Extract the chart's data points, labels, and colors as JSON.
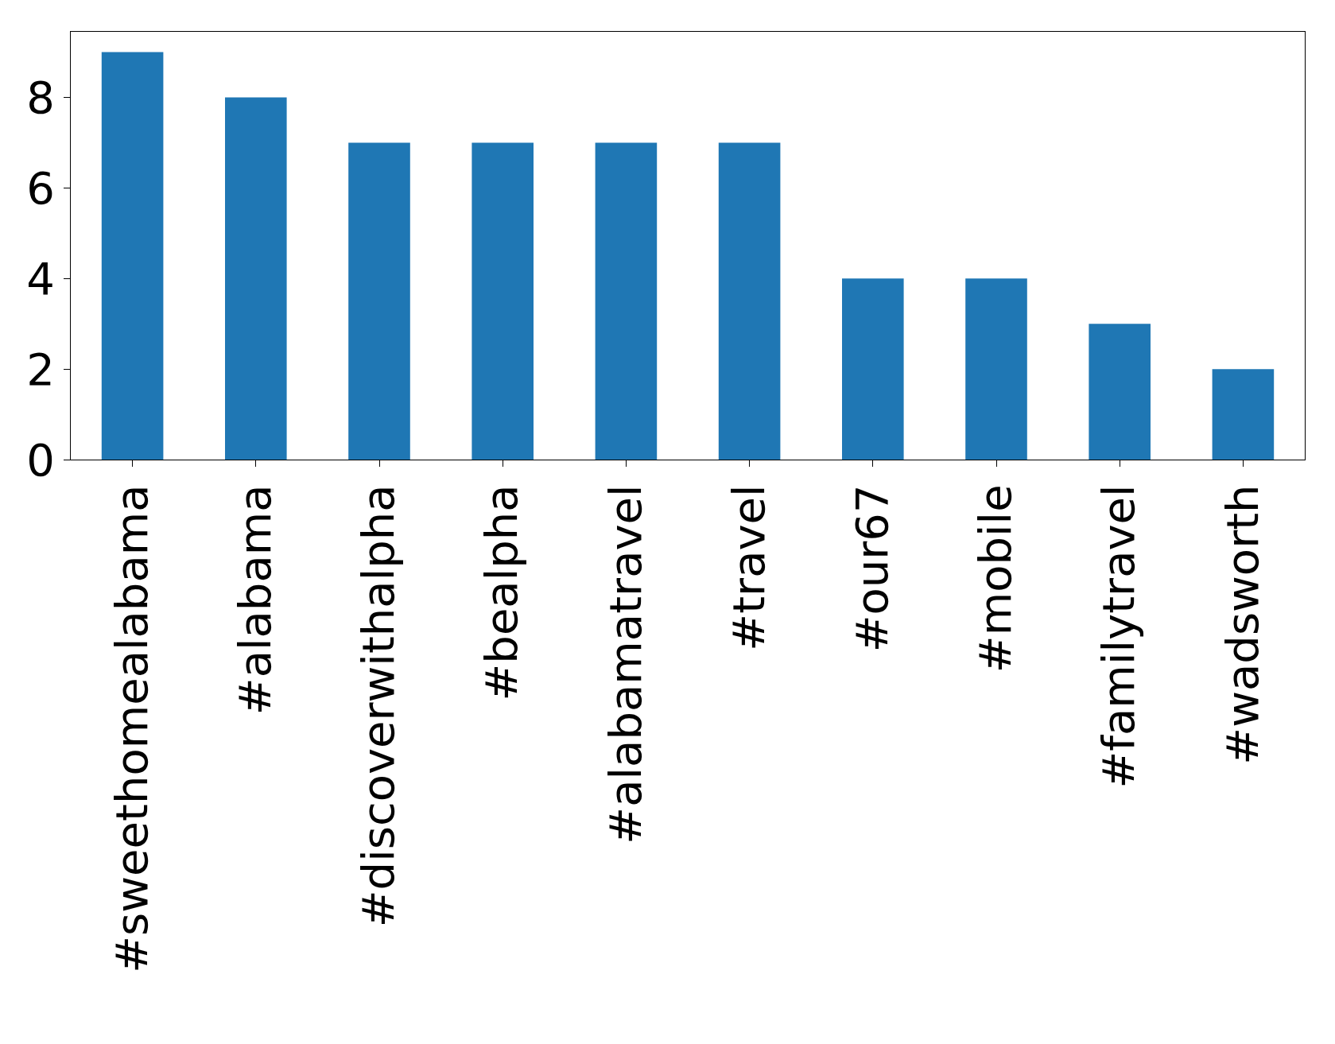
{
  "chart_data": {
    "type": "bar",
    "categories": [
      "#sweethomealabama",
      "#alabama",
      "#discoverwithalpha",
      "#bealpha",
      "#alabamatravel",
      "#travel",
      "#our67",
      "#mobile",
      "#familytravel",
      "#wadsworth"
    ],
    "values": [
      9,
      8,
      7,
      7,
      7,
      7,
      4,
      4,
      3,
      2
    ],
    "color": "#1f77b4",
    "ylim": [
      0,
      9.45
    ],
    "yticks": [
      0,
      2,
      4,
      6,
      8
    ],
    "legend": false
  }
}
